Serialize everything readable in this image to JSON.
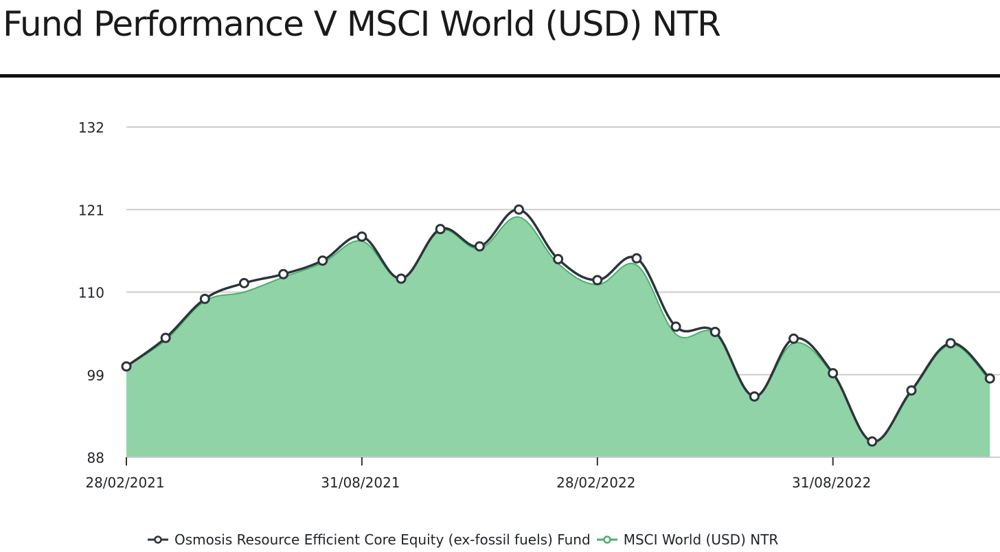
{
  "header": {
    "title": "Fund Performance V MSCI World (USD) NTR"
  },
  "colors": {
    "fund": "#2d343b",
    "index_line": "#4caf6e",
    "index_fill": "#8fd3a7",
    "grid": "#cccccc",
    "rule": "#111111"
  },
  "chart_data": {
    "type": "line",
    "title": "Fund Performance V MSCI World (USD) NTR",
    "xlabel": "",
    "ylabel": "",
    "ylim": [
      88,
      132
    ],
    "yticks": [
      88,
      99,
      110,
      121,
      132
    ],
    "x": [
      "28/02/2021",
      "31/03/2021",
      "30/04/2021",
      "31/05/2021",
      "30/06/2021",
      "31/07/2021",
      "31/08/2021",
      "30/09/2021",
      "31/10/2021",
      "30/11/2021",
      "31/12/2021",
      "31/01/2022",
      "28/02/2022",
      "31/03/2022",
      "30/04/2022",
      "31/05/2022",
      "30/06/2022",
      "31/07/2022",
      "31/08/2022",
      "30/09/2022",
      "31/10/2022",
      "30/11/2022",
      "31/12/2022"
    ],
    "xtick_labels": [
      "28/02/2021",
      "31/08/2021",
      "28/02/2022",
      "31/08/2022"
    ],
    "series": [
      {
        "name": "Osmosis Resource Efficient Core Equity (ex-fossil fuels) Fund",
        "style": "line-markers",
        "values": [
          100.1,
          103.9,
          109.1,
          111.2,
          112.4,
          114.2,
          117.4,
          111.8,
          118.4,
          116.1,
          121.0,
          114.4,
          111.6,
          114.5,
          105.4,
          104.7,
          96.1,
          103.8,
          99.2,
          90.1,
          96.9,
          103.2,
          98.5
        ]
      },
      {
        "name": "MSCI World (USD) NTR",
        "style": "area",
        "values": [
          100.1,
          103.6,
          108.8,
          110.0,
          112.0,
          113.9,
          116.8,
          111.8,
          118.2,
          115.8,
          120.0,
          113.8,
          111.0,
          113.6,
          104.4,
          104.5,
          96.2,
          103.2,
          99.0,
          90.1,
          96.7,
          103.0,
          98.2
        ]
      }
    ],
    "grid": true,
    "legend": "bottom"
  }
}
